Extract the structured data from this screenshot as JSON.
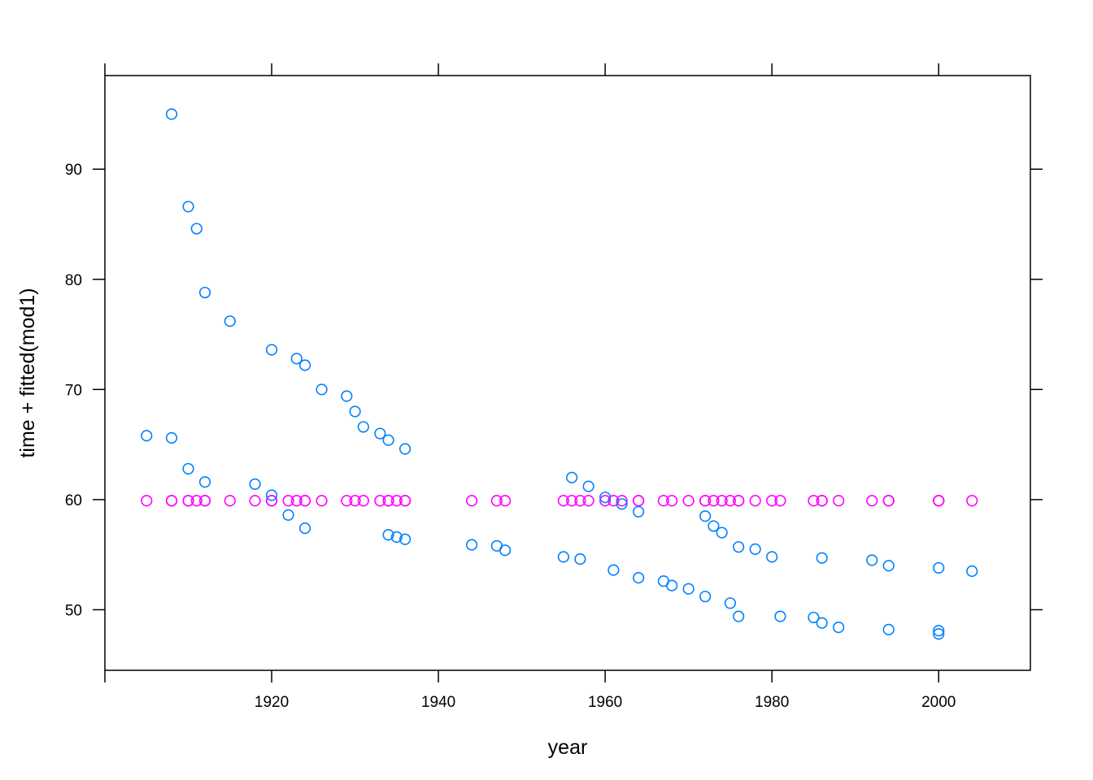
{
  "chart_data": {
    "type": "scatter",
    "xlabel": "year",
    "ylabel": "time + fitted(mod1)",
    "xlim": [
      1900,
      2011
    ],
    "ylim": [
      44.5,
      98.5
    ],
    "x_ticks": [
      1920,
      1940,
      1960,
      1980,
      2000
    ],
    "y_ticks": [
      50,
      60,
      70,
      80,
      90
    ],
    "grid": false,
    "legend": "none",
    "colors": {
      "observed": "#0080ff",
      "fitted": "#ff00ff"
    },
    "series": [
      {
        "points": [
          [
            1905,
            65.8
          ],
          [
            1908,
            95.0
          ],
          [
            1908,
            65.6
          ],
          [
            1910,
            86.6
          ],
          [
            1910,
            62.8
          ],
          [
            1911,
            84.6
          ],
          [
            1912,
            78.8
          ],
          [
            1912,
            61.6
          ],
          [
            1915,
            76.2
          ],
          [
            1918,
            61.4
          ],
          [
            1920,
            73.6
          ],
          [
            1920,
            60.4
          ],
          [
            1922,
            58.6
          ],
          [
            1923,
            72.8
          ],
          [
            1924,
            72.2
          ],
          [
            1924,
            57.4
          ],
          [
            1926,
            70.0
          ],
          [
            1929,
            69.4
          ],
          [
            1930,
            68.0
          ],
          [
            1931,
            66.6
          ],
          [
            1933,
            66.0
          ],
          [
            1934,
            65.4
          ],
          [
            1934,
            56.8
          ],
          [
            1935,
            56.6
          ],
          [
            1936,
            64.6
          ],
          [
            1936,
            56.4
          ],
          [
            1944,
            55.9
          ],
          [
            1947,
            55.8
          ],
          [
            1948,
            55.4
          ],
          [
            1955,
            54.8
          ],
          [
            1956,
            62.0
          ],
          [
            1957,
            54.6
          ],
          [
            1958,
            61.2
          ],
          [
            1960,
            60.2
          ],
          [
            1961,
            53.6
          ],
          [
            1962,
            59.6
          ],
          [
            1964,
            58.9
          ],
          [
            1964,
            52.9
          ],
          [
            1967,
            52.6
          ],
          [
            1968,
            52.2
          ],
          [
            1970,
            51.9
          ],
          [
            1972,
            58.5
          ],
          [
            1972,
            51.2
          ],
          [
            1973,
            57.6
          ],
          [
            1974,
            57.0
          ],
          [
            1975,
            50.6
          ],
          [
            1976,
            55.7
          ],
          [
            1976,
            49.4
          ],
          [
            1978,
            55.5
          ],
          [
            1980,
            54.8
          ],
          [
            1981,
            49.4
          ],
          [
            1985,
            49.3
          ],
          [
            1986,
            54.7
          ],
          [
            1986,
            48.8
          ],
          [
            1988,
            48.4
          ],
          [
            1992,
            54.5
          ],
          [
            1994,
            54.0
          ],
          [
            1994,
            48.2
          ],
          [
            2000,
            53.8
          ],
          [
            2000,
            48.1
          ],
          [
            2000,
            47.8
          ],
          [
            2004,
            53.5
          ]
        ]
      },
      {
        "y": 59.9,
        "x": [
          1905,
          1908,
          1908,
          1910,
          1910,
          1911,
          1912,
          1912,
          1915,
          1918,
          1920,
          1920,
          1922,
          1923,
          1924,
          1924,
          1926,
          1929,
          1930,
          1931,
          1933,
          1934,
          1934,
          1935,
          1936,
          1936,
          1944,
          1947,
          1948,
          1955,
          1956,
          1957,
          1958,
          1960,
          1961,
          1962,
          1964,
          1964,
          1967,
          1968,
          1970,
          1972,
          1972,
          1973,
          1974,
          1975,
          1976,
          1976,
          1978,
          1980,
          1981,
          1985,
          1986,
          1986,
          1988,
          1992,
          1994,
          1994,
          2000,
          2000,
          2000,
          2004
        ]
      }
    ]
  }
}
